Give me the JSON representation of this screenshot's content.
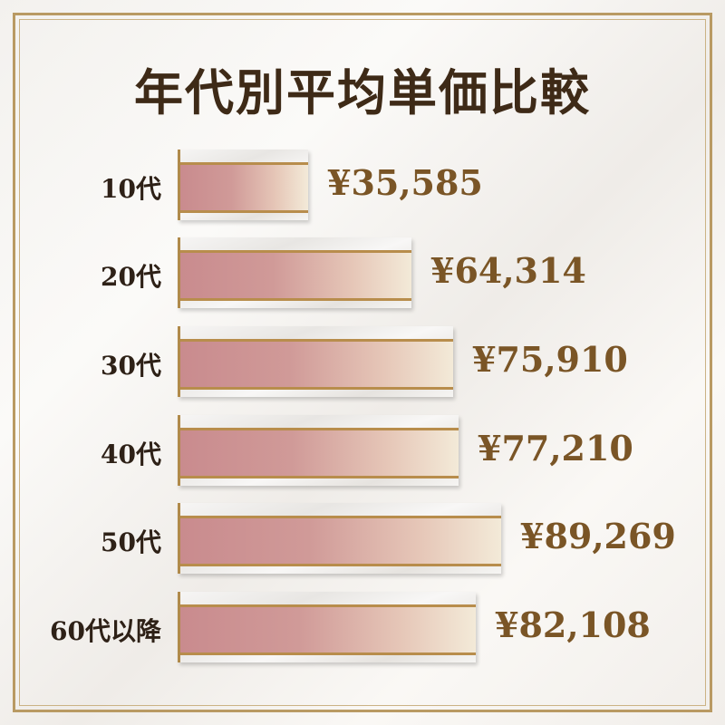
{
  "chart_data": {
    "type": "bar",
    "orientation": "horizontal",
    "title": "年代別平均単価比較",
    "categories": [
      "10代",
      "20代",
      "30代",
      "40代",
      "50代",
      "60代以降"
    ],
    "values": [
      35585,
      64314,
      75910,
      77210,
      89269,
      82108
    ],
    "value_labels": [
      "¥35,585",
      "¥64,314",
      "¥75,910",
      "¥77,210",
      "¥89,269",
      "¥82,108"
    ],
    "xlabel": "",
    "ylabel": "",
    "grid": false,
    "colors": {
      "bar_start": "#c98b8e",
      "bar_end": "#f3ead8",
      "gold": "#b88d4c",
      "value_text": "#7a5526",
      "title_text": "#3e2a17"
    }
  }
}
